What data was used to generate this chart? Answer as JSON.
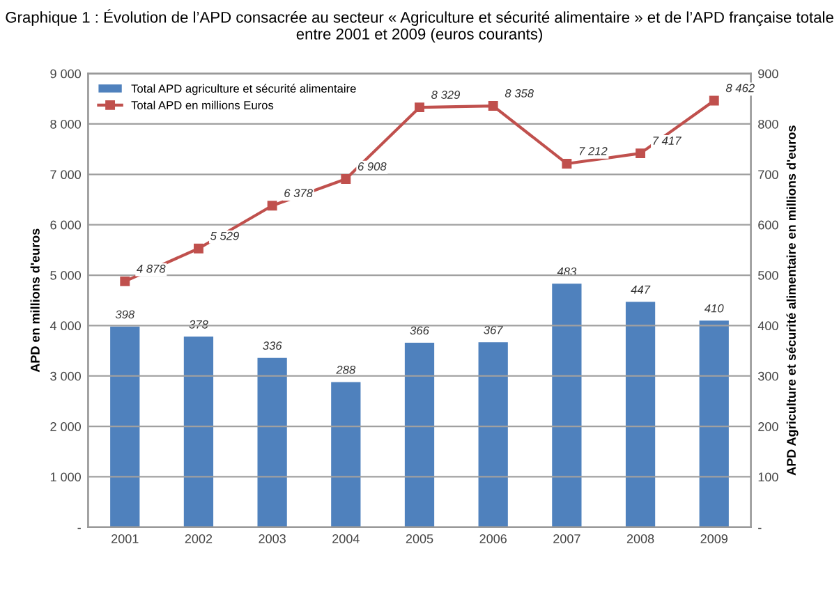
{
  "chart_data": {
    "type": "bar",
    "title": "Graphique 1 : Évolution de l’APD consacrée au secteur « Agriculture et sécurité alimentaire » et de l’APD française totale entre 2001 et 2009 (euros courants)",
    "ylabel": "APD en millions d'euros",
    "y2label": "APD Agriculture et sécurité alimentaire en millions d'euros",
    "categories": [
      "2001",
      "2002",
      "2003",
      "2004",
      "2005",
      "2006",
      "2007",
      "2008",
      "2009"
    ],
    "series": [
      {
        "name": "Total APD agriculture et sécurité alimentaire",
        "axis": "y2",
        "color": "#4f81bd",
        "values": [
          398,
          378,
          336,
          288,
          366,
          367,
          483,
          447,
          410
        ]
      },
      {
        "name": "Total APD en millions Euros",
        "type": "line",
        "axis": "y",
        "color": "#c0504d",
        "marker": "square",
        "values": [
          4878,
          5529,
          6378,
          6908,
          8329,
          8358,
          7212,
          7417,
          8462
        ]
      }
    ],
    "data_labels": true,
    "ylim": [
      0,
      9000
    ],
    "yticks": [
      {
        "value": 0,
        "label": "-"
      },
      {
        "value": 1000,
        "label": "1 000"
      },
      {
        "value": 2000,
        "label": "2 000"
      },
      {
        "value": 3000,
        "label": "3 000"
      },
      {
        "value": 4000,
        "label": "4 000"
      },
      {
        "value": 5000,
        "label": "5 000"
      },
      {
        "value": 6000,
        "label": "6 000"
      },
      {
        "value": 7000,
        "label": "7 000"
      },
      {
        "value": 8000,
        "label": "8 000"
      },
      {
        "value": 9000,
        "label": "9 000"
      }
    ],
    "y2lim": [
      0,
      900
    ],
    "y2ticks": [
      {
        "value": 0,
        "label": "-"
      },
      100,
      200,
      300,
      400,
      500,
      600,
      700,
      800,
      900
    ],
    "grid": "y",
    "legend": "top left"
  }
}
